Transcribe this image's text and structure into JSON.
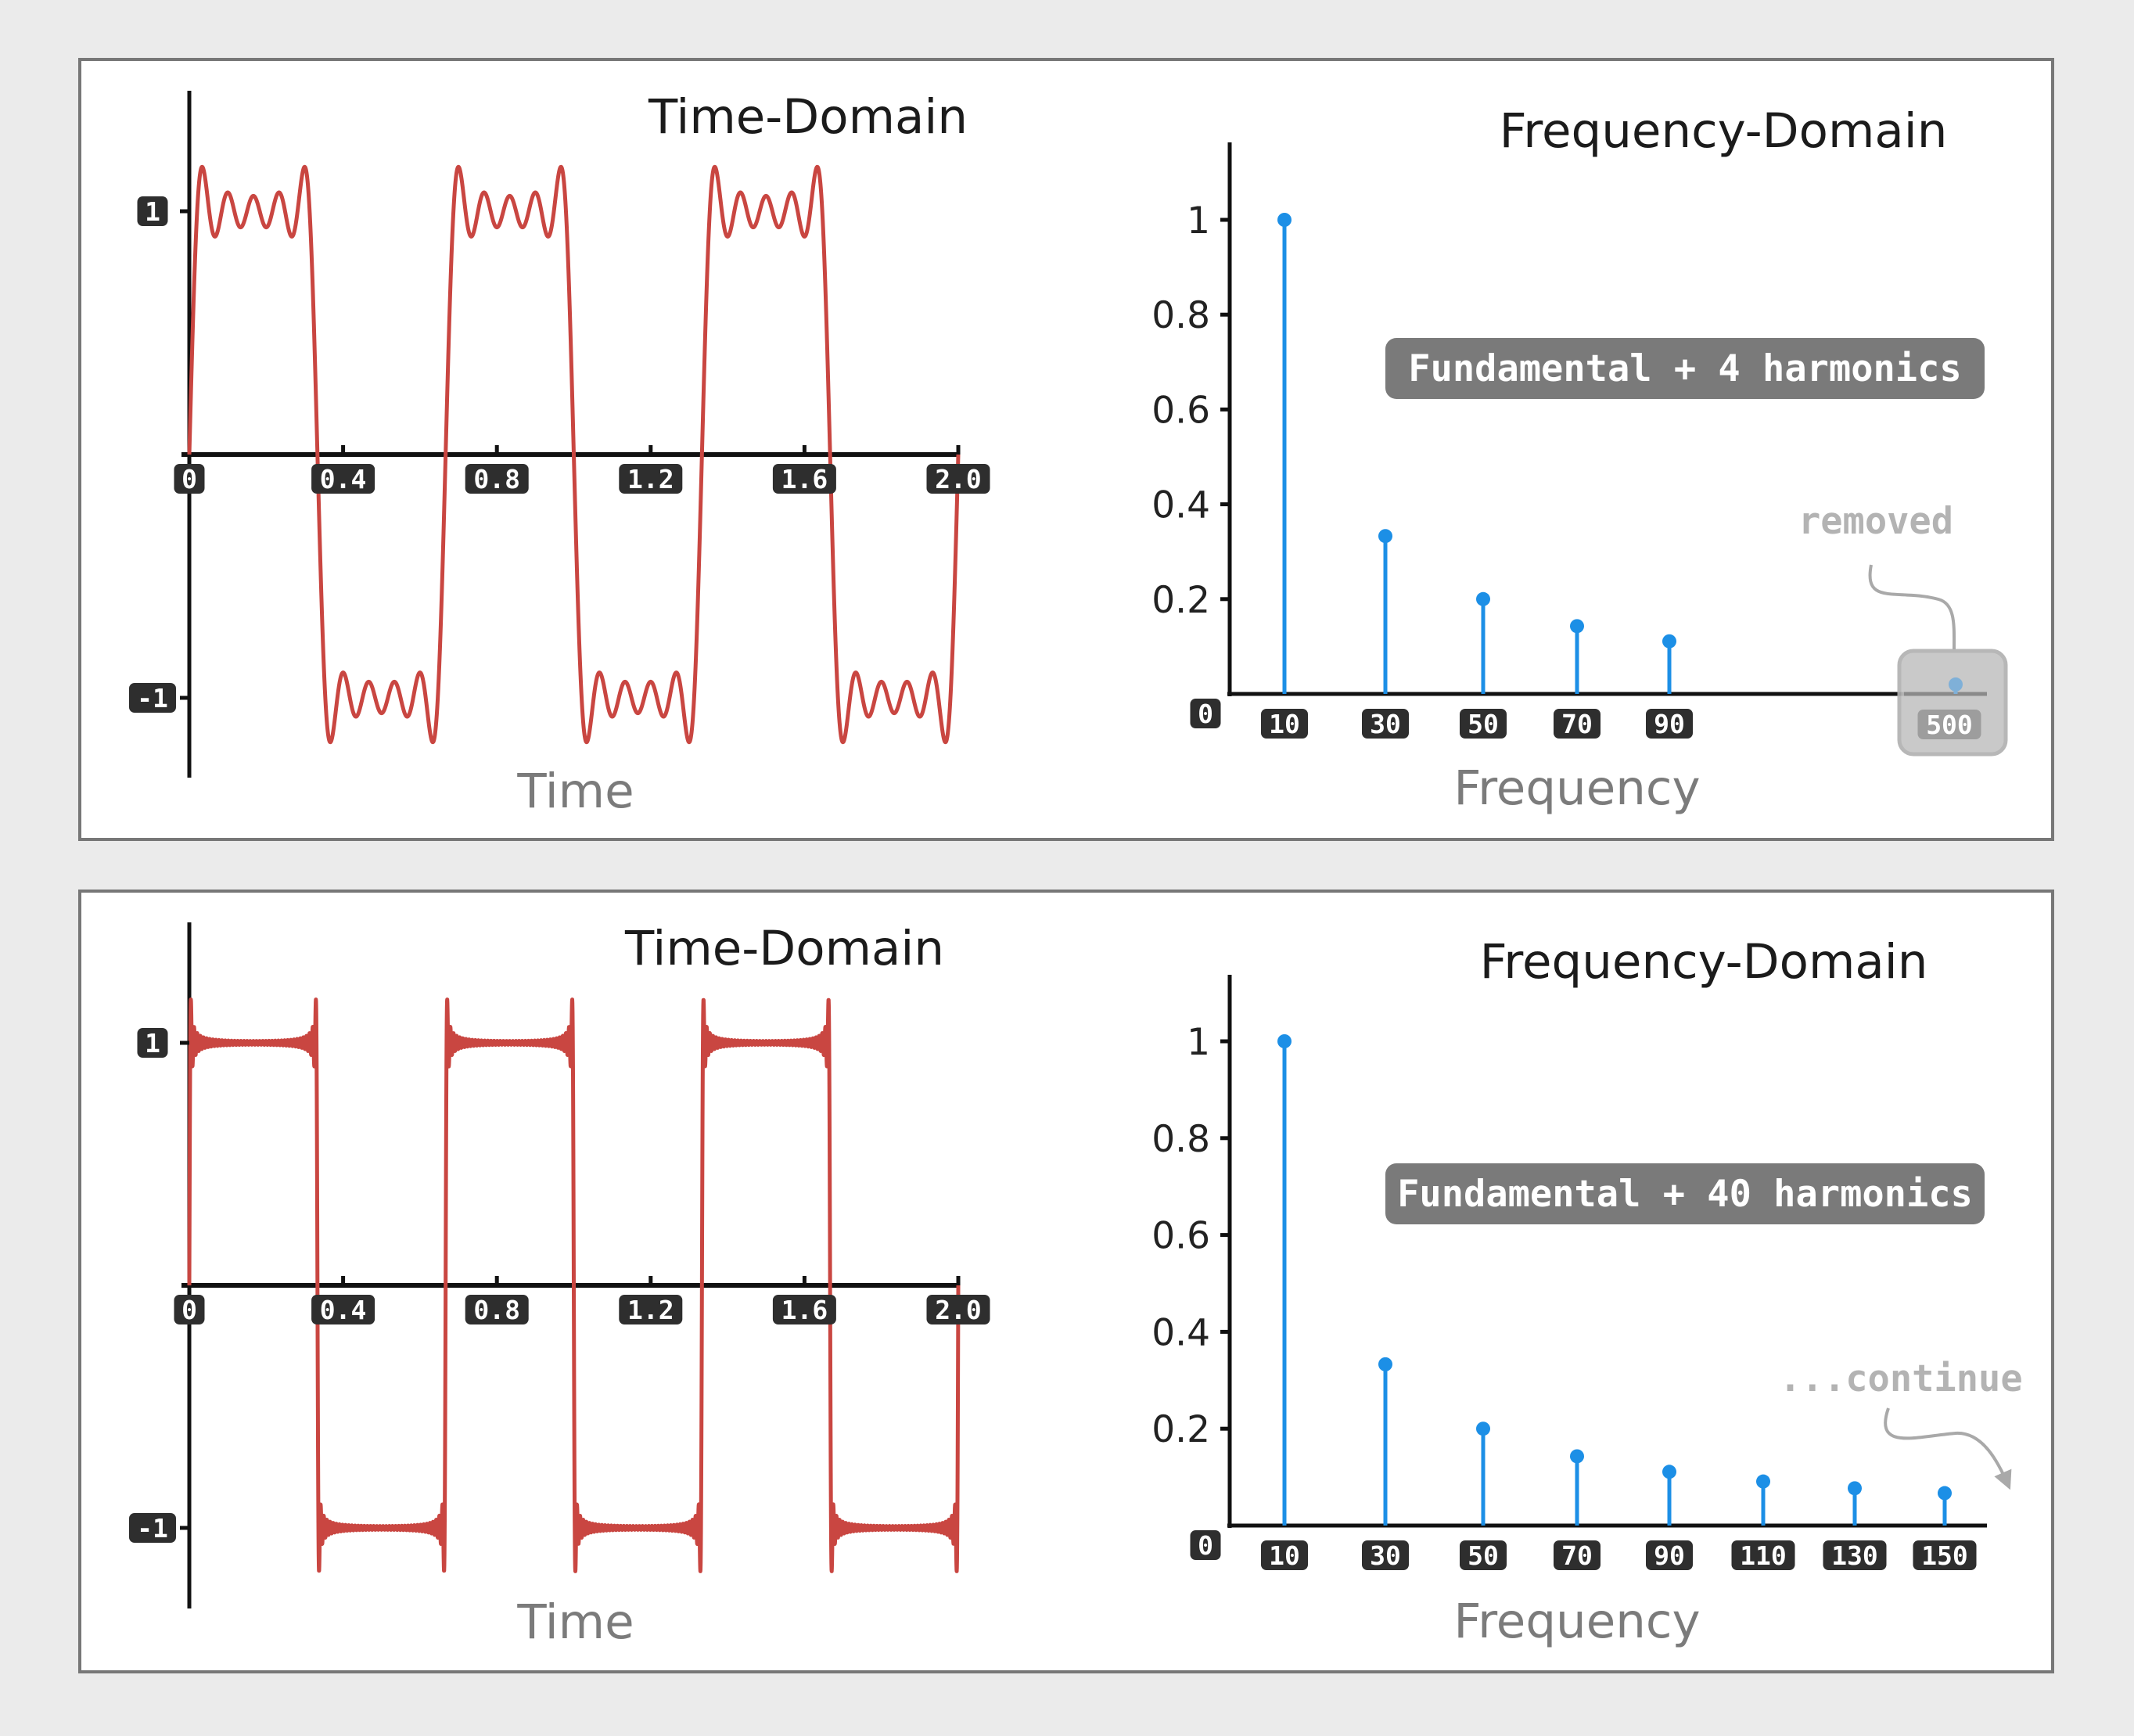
{
  "chart_data": [
    {
      "type": "line",
      "title": "Time-Domain",
      "xlabel": "Time",
      "ylabel": "",
      "xlim": [
        0,
        2.0
      ],
      "ylim": [
        -1,
        1
      ],
      "x_ticks": [
        "0",
        "0.4",
        "0.8",
        "1.2",
        "1.6",
        "2.0"
      ],
      "y_ticks": [
        "1",
        "-1"
      ],
      "signal": {
        "fundamental_frequency": 1.5,
        "odd_harmonics": 5
      },
      "color": "#c94641"
    },
    {
      "type": "bar",
      "title": "Frequency-Domain",
      "xlabel": "Frequency",
      "ylabel": "",
      "ylim": [
        0,
        1
      ],
      "y_ticks": [
        "0.2",
        "0.4",
        "0.6",
        "0.8",
        "1"
      ],
      "zero_label": "0",
      "categories": [
        "10",
        "30",
        "50",
        "70",
        "90"
      ],
      "values": [
        1.0,
        0.333,
        0.2,
        0.143,
        0.111
      ],
      "removed": {
        "category": "500",
        "value": 0.02,
        "label": "removed"
      },
      "annotation": "Fundamental + 4 harmonics",
      "color": "#1c8fe6"
    },
    {
      "type": "line",
      "title": "Time-Domain",
      "xlabel": "Time",
      "ylabel": "",
      "xlim": [
        0,
        2.0
      ],
      "ylim": [
        -1,
        1
      ],
      "x_ticks": [
        "0",
        "0.4",
        "0.8",
        "1.2",
        "1.6",
        "2.0"
      ],
      "y_ticks": [
        "1",
        "-1"
      ],
      "signal": {
        "fundamental_frequency": 1.5,
        "odd_harmonics": 41
      },
      "color": "#c94641"
    },
    {
      "type": "bar",
      "title": "Frequency-Domain",
      "xlabel": "Frequency",
      "ylabel": "",
      "ylim": [
        0,
        1
      ],
      "y_ticks": [
        "0.2",
        "0.4",
        "0.6",
        "0.8",
        "1"
      ],
      "zero_label": "0",
      "categories": [
        "10",
        "30",
        "50",
        "70",
        "90",
        "110",
        "130",
        "150"
      ],
      "values": [
        1.0,
        0.333,
        0.2,
        0.143,
        0.111,
        0.091,
        0.077,
        0.067
      ],
      "continue_label": "...continue",
      "annotation": "Fundamental + 40 harmonics",
      "color": "#1c8fe6"
    }
  ]
}
